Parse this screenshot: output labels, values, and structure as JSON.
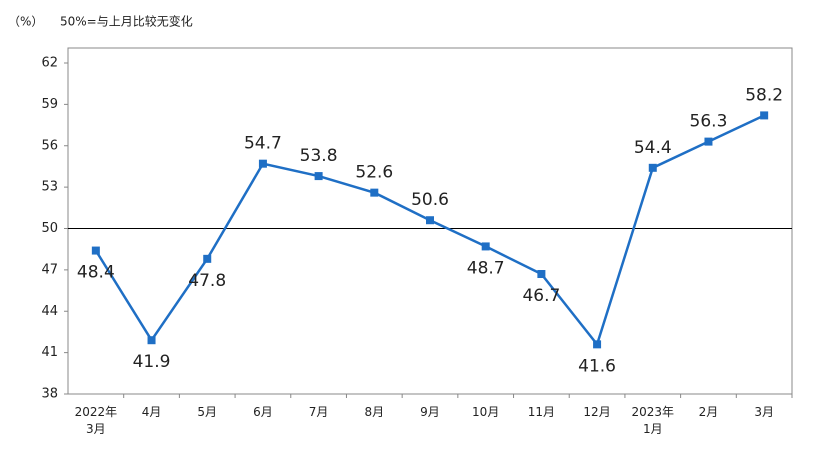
{
  "chart_data": {
    "type": "line",
    "unit_label": "（%）",
    "note": "50%=与上月比较无变化",
    "categories": [
      "2022年\n3月",
      "4月",
      "5月",
      "6月",
      "7月",
      "8月",
      "9月",
      "10月",
      "11月",
      "12月",
      "2023年\n1月",
      "2月",
      "3月"
    ],
    "values": [
      48.4,
      41.9,
      47.8,
      54.7,
      53.8,
      52.6,
      50.6,
      48.7,
      46.7,
      41.6,
      54.4,
      56.3,
      58.2
    ],
    "color": "#1f6fc5",
    "ylim": [
      38,
      62
    ],
    "yticks": [
      38,
      41,
      44,
      47,
      50,
      53,
      56,
      59,
      62
    ],
    "hline": 50,
    "grid": false
  }
}
